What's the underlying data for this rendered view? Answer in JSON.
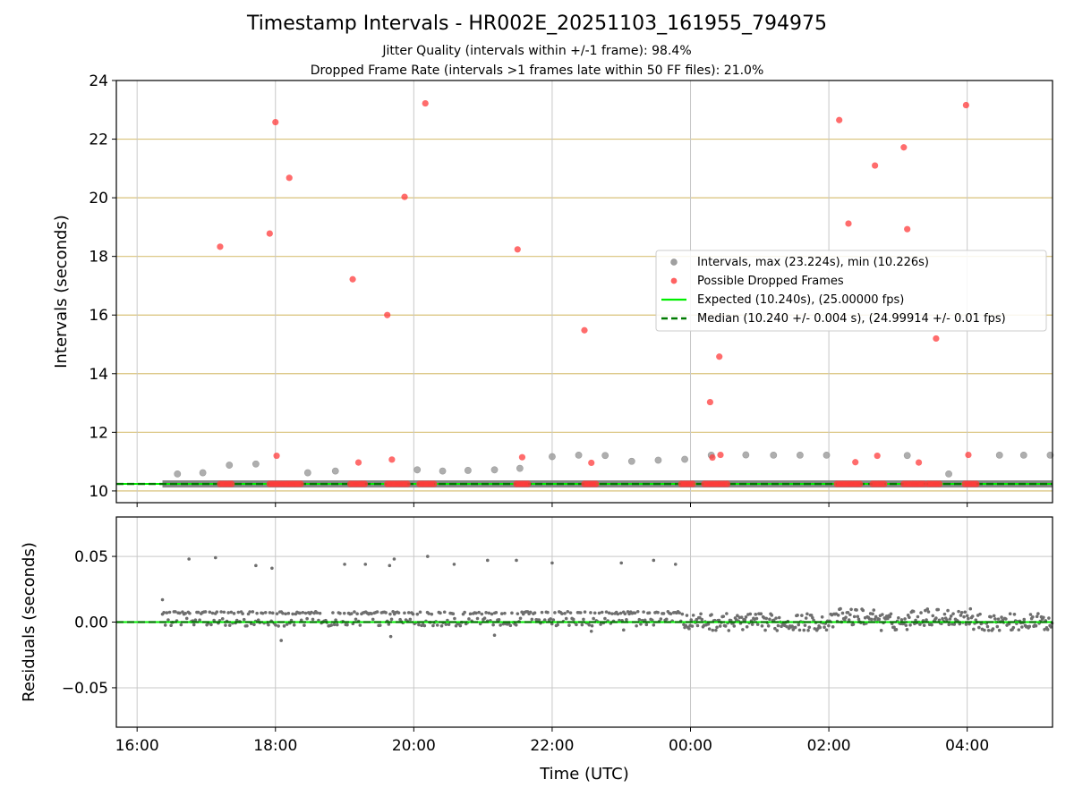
{
  "chart_data": [
    {
      "type": "scatter",
      "title": "Timestamp Intervals - HR002E_20251103_161955_794975",
      "subtitle_1": "Jitter Quality (intervals within +/-1 frame): 98.4%",
      "subtitle_2": "Dropped Frame Rate (intervals >1 frames late within 50 FF files): 21.0%",
      "ylabel": "Intervals (seconds)",
      "ylim": [
        9.6,
        24
      ],
      "yticks": [
        10,
        12,
        14,
        16,
        18,
        20,
        22,
        24
      ],
      "grid": true,
      "legend_position": "center-right",
      "legend": [
        "Intervals, max (23.224s), min (10.226s)",
        "Possible Dropped Frames",
        "Expected (10.240s), (25.00000 fps)",
        "Median (10.240 +/- 0.004 s), (24.99914 +/- 0.01 fps)"
      ],
      "expected_value": 10.24,
      "median_value": 10.24,
      "colors": {
        "intervals": "#a0a0a0",
        "dropped": "#ff3b3b",
        "expected": "#00ee00",
        "median": "#007a00",
        "hgrid": "#d9c27a",
        "vgrid": "#c8c8c8"
      },
      "series": [
        {
          "name": "Intervals, max (23.224s), min (10.226s)",
          "points": [
            [
              "16:35",
              10.58
            ],
            [
              "16:57",
              10.62
            ],
            [
              "17:20",
              10.88
            ],
            [
              "17:43",
              10.92
            ],
            [
              "18:28",
              10.62
            ],
            [
              "18:52",
              10.68
            ],
            [
              "20:03",
              10.72
            ],
            [
              "20:25",
              10.68
            ],
            [
              "20:47",
              10.7
            ],
            [
              "21:10",
              10.72
            ],
            [
              "21:32",
              10.77
            ],
            [
              "22:00",
              11.17
            ],
            [
              "22:23",
              11.22
            ],
            [
              "22:46",
              11.21
            ],
            [
              "23:09",
              11.01
            ],
            [
              "23:32",
              11.05
            ],
            [
              "23:55",
              11.08
            ],
            [
              "00:18",
              11.22
            ],
            [
              "00:48",
              11.23
            ],
            [
              "01:12",
              11.22
            ],
            [
              "01:35",
              11.22
            ],
            [
              "01:58",
              11.22
            ],
            [
              "03:08",
              11.21
            ],
            [
              "03:44",
              10.58
            ],
            [
              "04:28",
              11.22
            ],
            [
              "04:49",
              11.22
            ],
            [
              "05:12",
              11.22
            ]
          ]
        },
        {
          "name": "Possible Dropped Frames",
          "points": [
            [
              "17:12",
              18.33
            ],
            [
              "17:55",
              18.78
            ],
            [
              "18:00",
              22.58
            ],
            [
              "18:01",
              11.2
            ],
            [
              "18:12",
              20.68
            ],
            [
              "19:07",
              17.22
            ],
            [
              "19:12",
              10.97
            ],
            [
              "19:37",
              16.0
            ],
            [
              "19:41",
              11.07
            ],
            [
              "19:52",
              20.03
            ],
            [
              "20:10",
              23.22
            ],
            [
              "21:30",
              18.24
            ],
            [
              "21:34",
              11.15
            ],
            [
              "22:28",
              15.48
            ],
            [
              "22:34",
              10.96
            ],
            [
              "00:17",
              13.03
            ],
            [
              "00:19",
              11.14
            ],
            [
              "00:25",
              14.58
            ],
            [
              "00:26",
              11.23
            ],
            [
              "02:09",
              22.65
            ],
            [
              "02:17",
              19.12
            ],
            [
              "02:23",
              10.98
            ],
            [
              "02:40",
              21.1
            ],
            [
              "02:42",
              11.2
            ],
            [
              "03:05",
              21.72
            ],
            [
              "03:08",
              18.93
            ],
            [
              "03:18",
              10.97
            ],
            [
              "03:33",
              15.2
            ],
            [
              "03:59",
              23.16
            ],
            [
              "04:01",
              11.23
            ]
          ]
        },
        {
          "name": "Expected (10.240s), (25.00000 fps)",
          "value": 10.24
        },
        {
          "name": "Median (10.240 +/- 0.004 s), (24.99914 +/- 0.01 fps)",
          "value": 10.24
        }
      ]
    },
    {
      "type": "scatter",
      "xlabel": "Time (UTC)",
      "ylabel": "Residuals (seconds)",
      "ylim": [
        -0.08,
        0.08
      ],
      "yticks": [
        -0.05,
        0.0,
        0.05
      ],
      "ytick_labels": [
        "−0.05",
        "0.00",
        "0.05"
      ],
      "xticks": [
        "16:00",
        "18:00",
        "20:00",
        "22:00",
        "00:00",
        "02:00",
        "04:00"
      ],
      "xlim": [
        "15:42",
        "05:14"
      ],
      "grid": true,
      "series": [
        {
          "name": "",
          "points": [
            [
              "16:45",
              0.048
            ],
            [
              "17:08",
              0.049
            ],
            [
              "17:43",
              0.043
            ],
            [
              "17:57",
              0.041
            ],
            [
              "19:00",
              0.044
            ],
            [
              "19:18",
              0.044
            ],
            [
              "19:39",
              0.043
            ],
            [
              "19:43",
              0.048
            ],
            [
              "20:12",
              0.05
            ],
            [
              "20:35",
              0.044
            ],
            [
              "21:04",
              0.047
            ],
            [
              "21:29",
              0.047
            ],
            [
              "22:00",
              0.045
            ],
            [
              "23:00",
              0.045
            ],
            [
              "23:28",
              0.047
            ],
            [
              "23:47",
              0.044
            ],
            [
              "16:22",
              0.017
            ],
            [
              "18:05",
              -0.014
            ],
            [
              "19:40",
              -0.011
            ],
            [
              "21:10",
              -0.01
            ],
            [
              "22:34",
              -0.007
            ],
            [
              "23:02",
              -0.006
            ]
          ]
        }
      ]
    }
  ]
}
